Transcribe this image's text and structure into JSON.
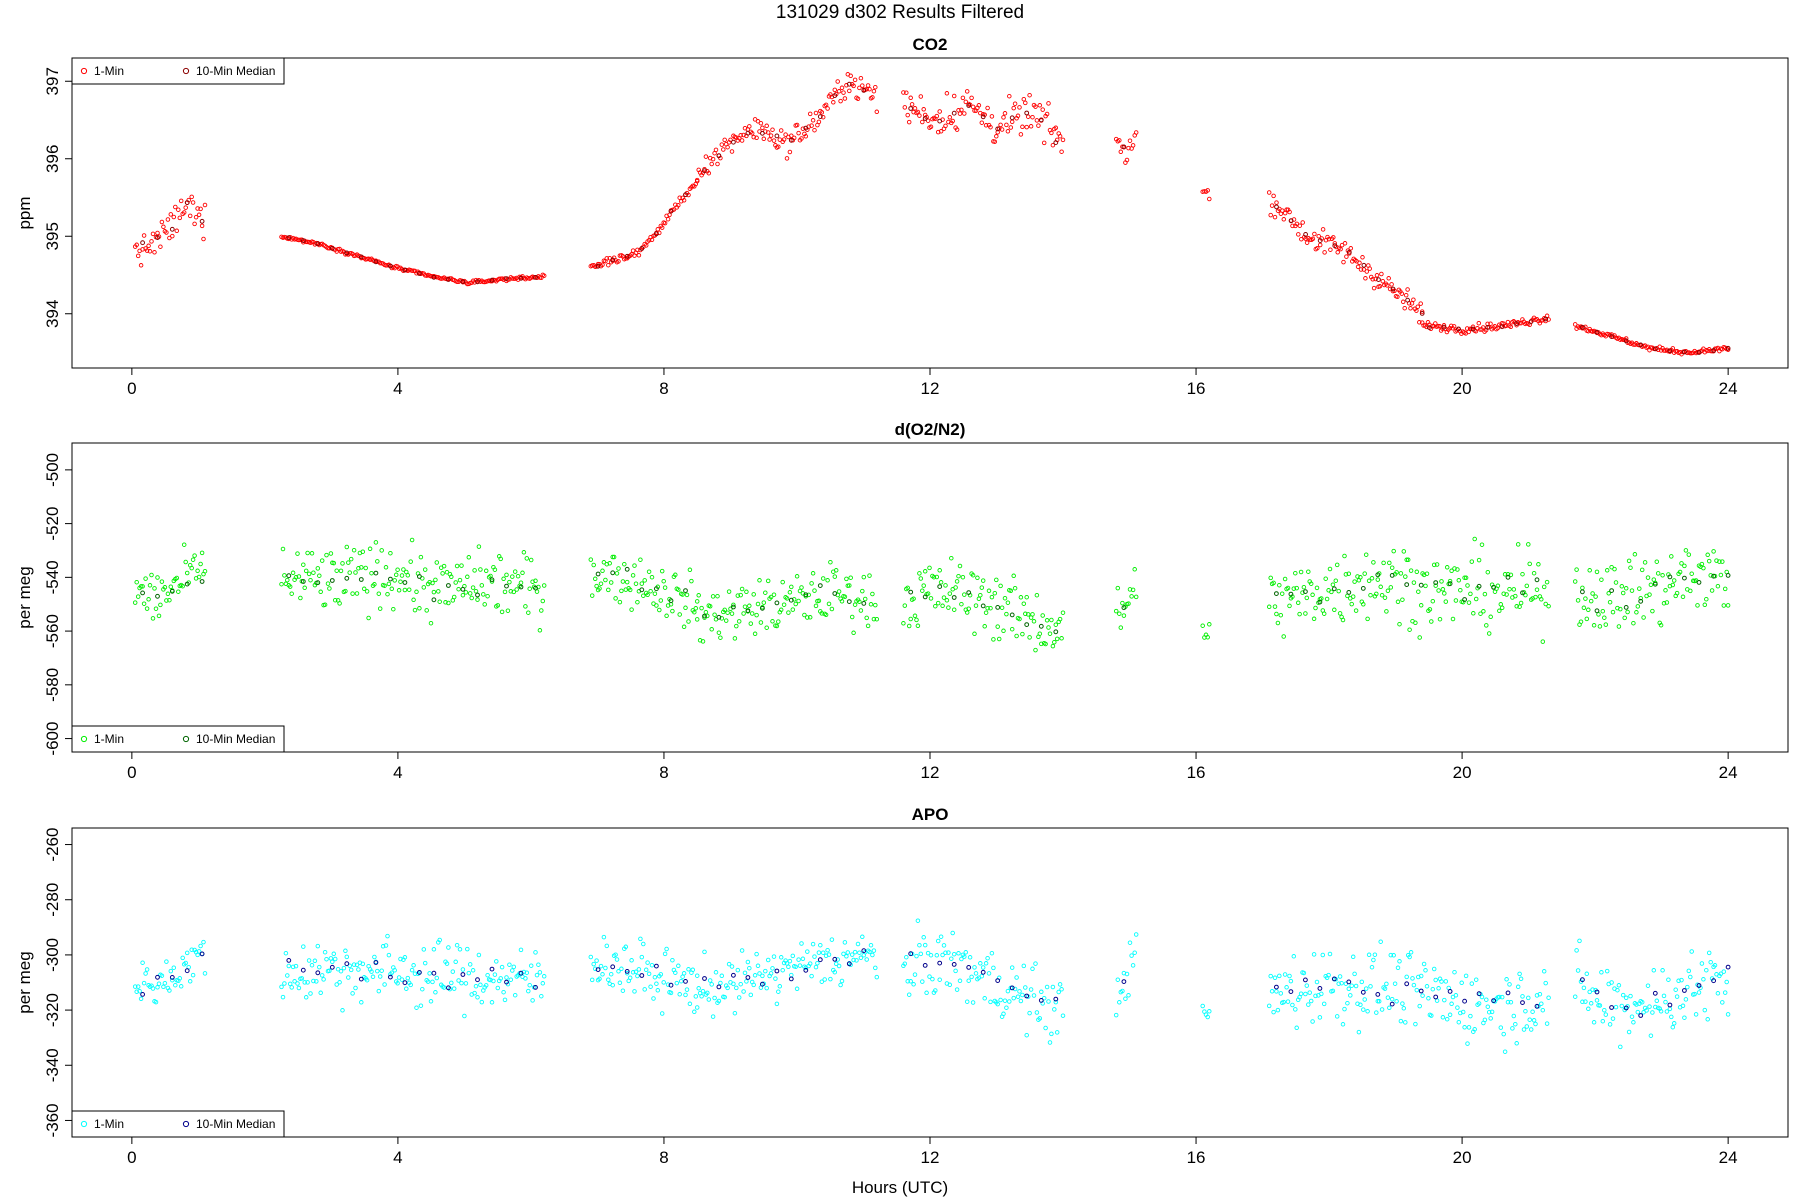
{
  "figure": {
    "title": "131029   d302   Results Filtered",
    "xlabel": "Hours (UTC)"
  },
  "legend": {
    "one_min": "1-Min",
    "ten_min": "10-Min Median"
  },
  "chart_data": [
    {
      "type": "scatter",
      "title": "CO2",
      "ylabel": "ppm",
      "xlim": [
        -0.9,
        24.9
      ],
      "ylim": [
        393.3,
        397.3
      ],
      "xticks": [
        0,
        4,
        8,
        12,
        16,
        20,
        24
      ],
      "yticks": [
        394,
        395,
        396,
        397
      ],
      "legend_position": "top-left",
      "colors": {
        "one_min": "#ff0000",
        "ten_min": "#8b0000"
      },
      "series": [
        {
          "name": "1-Min",
          "segments": [
            {
              "x0": 0.05,
              "x1": 1.1,
              "y": [
                394.8,
                394.9,
                395.1,
                395.4,
                395.2
              ],
              "noise": 0.2
            },
            {
              "x0": 2.25,
              "x1": 6.2,
              "y": [
                395.0,
                394.9,
                394.75,
                394.6,
                394.48,
                394.4,
                394.45,
                394.48
              ],
              "noise": 0.02
            },
            {
              "x0": 6.9,
              "x1": 8.5,
              "y": [
                394.58,
                394.7,
                394.75,
                395.0,
                395.4,
                395.7
              ],
              "noise": 0.05
            },
            {
              "x0": 8.5,
              "x1": 11.2,
              "y": [
                395.7,
                396.2,
                396.4,
                396.2,
                396.5,
                397.0,
                396.8
              ],
              "noise": 0.15
            },
            {
              "x0": 11.6,
              "x1": 14.0,
              "y": [
                396.7,
                396.5,
                396.7,
                396.4,
                396.6,
                396.2
              ],
              "noise": 0.25
            },
            {
              "x0": 14.8,
              "x1": 15.1,
              "y": [
                396.2,
                396.1,
                396.3
              ],
              "noise": 0.15
            },
            {
              "x0": 16.1,
              "x1": 16.2,
              "y": [
                395.6,
                395.5
              ],
              "noise": 0.1
            },
            {
              "x0": 17.1,
              "x1": 19.4,
              "y": [
                395.5,
                395.0,
                394.8,
                394.4,
                394.0
              ],
              "noise": 0.15
            },
            {
              "x0": 19.4,
              "x1": 21.3,
              "y": [
                393.85,
                393.8,
                393.85,
                393.95
              ],
              "noise": 0.05
            },
            {
              "x0": 21.7,
              "x1": 24.0,
              "y": [
                393.85,
                393.7,
                393.55,
                393.5,
                393.55
              ],
              "noise": 0.03
            }
          ]
        },
        {
          "name": "10-Min Median",
          "segments": "subsample"
        }
      ]
    },
    {
      "type": "scatter",
      "title": "d(O2/N2)",
      "ylabel": "per meg",
      "xlim": [
        -0.9,
        24.9
      ],
      "ylim": [
        -605,
        -490
      ],
      "xticks": [
        0,
        4,
        8,
        12,
        16,
        20,
        24
      ],
      "yticks": [
        -500,
        -520,
        -540,
        -560,
        -580,
        -600
      ],
      "legend_position": "bottom-left",
      "colors": {
        "one_min": "#00ee00",
        "ten_min": "#006400"
      },
      "series": [
        {
          "name": "1-Min",
          "segments": [
            {
              "x0": 0.05,
              "x1": 1.1,
              "y": [
                -545,
                -548,
                -542,
                -538
              ],
              "noise": 10
            },
            {
              "x0": 2.25,
              "x1": 6.2,
              "y": [
                -540,
                -542,
                -538,
                -545,
                -542,
                -545
              ],
              "noise": 12
            },
            {
              "x0": 6.9,
              "x1": 8.5,
              "y": [
                -538,
                -540,
                -545,
                -550
              ],
              "noise": 10
            },
            {
              "x0": 8.5,
              "x1": 11.2,
              "y": [
                -555,
                -552,
                -550,
                -545,
                -550
              ],
              "noise": 10
            },
            {
              "x0": 11.6,
              "x1": 14.0,
              "y": [
                -548,
                -545,
                -548,
                -555,
                -560
              ],
              "noise": 12
            },
            {
              "x0": 14.8,
              "x1": 15.1,
              "y": [
                -555,
                -545
              ],
              "noise": 10
            },
            {
              "x0": 16.1,
              "x1": 16.2,
              "y": [
                -558,
                -560
              ],
              "noise": 5
            },
            {
              "x0": 17.1,
              "x1": 21.3,
              "y": [
                -550,
                -545,
                -540,
                -545,
                -545,
                -545
              ],
              "noise": 14
            },
            {
              "x0": 21.7,
              "x1": 24.0,
              "y": [
                -545,
                -548,
                -545,
                -540,
                -540
              ],
              "noise": 14
            }
          ]
        },
        {
          "name": "10-Min Median",
          "segments": "subsample"
        }
      ]
    },
    {
      "type": "scatter",
      "title": "APO",
      "ylabel": "per meg",
      "xlim": [
        -0.9,
        24.9
      ],
      "ylim": [
        -366,
        -254
      ],
      "xticks": [
        0,
        4,
        8,
        12,
        16,
        20,
        24
      ],
      "yticks": [
        -260,
        -280,
        -300,
        -320,
        -340,
        -360
      ],
      "legend_position": "bottom-left",
      "colors": {
        "one_min": "#00ffff",
        "ten_min": "#00008b"
      },
      "series": [
        {
          "name": "1-Min",
          "segments": [
            {
              "x0": 0.05,
              "x1": 1.1,
              "y": [
                -312,
                -310,
                -305,
                -300
              ],
              "noise": 8
            },
            {
              "x0": 2.25,
              "x1": 6.2,
              "y": [
                -306,
                -305,
                -306,
                -308,
                -308,
                -310
              ],
              "noise": 12
            },
            {
              "x0": 6.9,
              "x1": 8.5,
              "y": [
                -302,
                -305,
                -308,
                -312
              ],
              "noise": 10
            },
            {
              "x0": 8.5,
              "x1": 11.2,
              "y": [
                -312,
                -310,
                -306,
                -302,
                -300
              ],
              "noise": 10
            },
            {
              "x0": 11.6,
              "x1": 14.0,
              "y": [
                -305,
                -302,
                -308,
                -315,
                -320
              ],
              "noise": 12
            },
            {
              "x0": 14.8,
              "x1": 15.1,
              "y": [
                -315,
                -300
              ],
              "noise": 8
            },
            {
              "x0": 16.1,
              "x1": 16.2,
              "y": [
                -320,
                -322
              ],
              "noise": 5
            },
            {
              "x0": 17.1,
              "x1": 21.3,
              "y": [
                -315,
                -310,
                -312,
                -315,
                -318,
                -315
              ],
              "noise": 14
            },
            {
              "x0": 21.7,
              "x1": 24.0,
              "y": [
                -312,
                -318,
                -318,
                -312,
                -310
              ],
              "noise": 14
            }
          ]
        },
        {
          "name": "10-Min Median",
          "segments": "subsample"
        }
      ]
    }
  ]
}
